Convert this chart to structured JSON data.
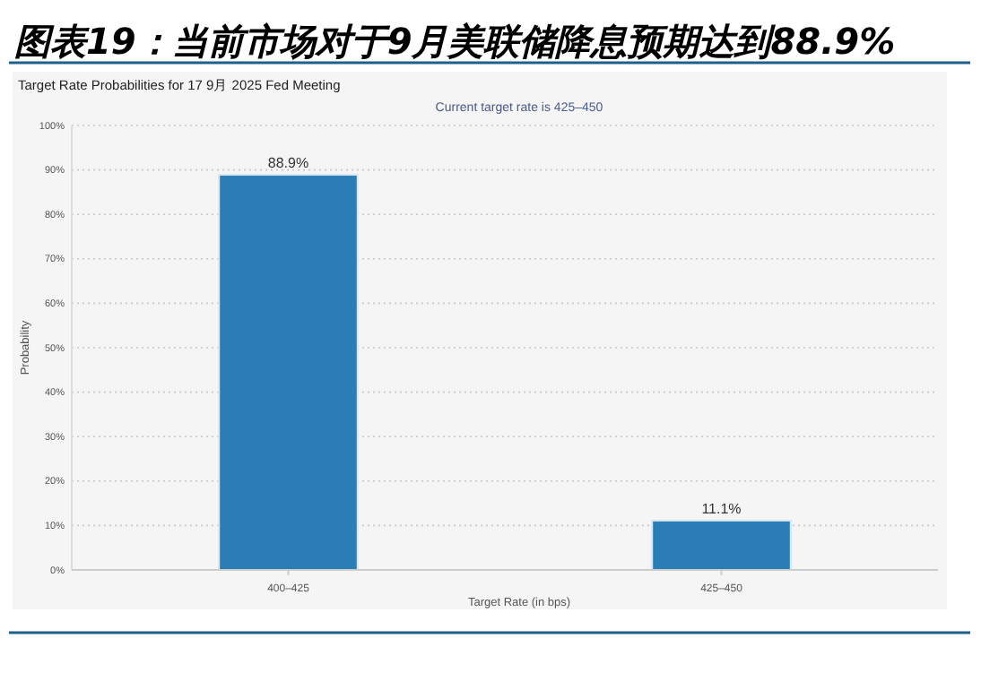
{
  "chart_data": {
    "type": "bar",
    "title": "图表19：当前市场对于9月美联储降息预期达到88.9%",
    "subtitle": "Target Rate Probabilities for 17 9月 2025 Fed Meeting",
    "annotations": [
      "Current target rate is 425–450"
    ],
    "xlabel": "Target Rate (in bps)",
    "ylabel": "Probability",
    "categories": [
      "400–425",
      "425–450"
    ],
    "values": [
      88.9,
      11.1
    ],
    "value_labels": [
      "88.9%",
      "11.1%"
    ],
    "color": "#2a7db5",
    "ylim": [
      0,
      100
    ],
    "yticks": [
      {
        "value": 0,
        "label": "0%"
      },
      {
        "value": 10,
        "label": "10%"
      },
      {
        "value": 20,
        "label": "20%"
      },
      {
        "value": 30,
        "label": "30%"
      },
      {
        "value": 40,
        "label": "40%"
      },
      {
        "value": 50,
        "label": "50%"
      },
      {
        "value": 60,
        "label": "60%"
      },
      {
        "value": 70,
        "label": "70%"
      },
      {
        "value": 80,
        "label": "80%"
      },
      {
        "value": 90,
        "label": "90%"
      },
      {
        "value": 100,
        "label": "100%"
      }
    ],
    "grid": "y"
  }
}
